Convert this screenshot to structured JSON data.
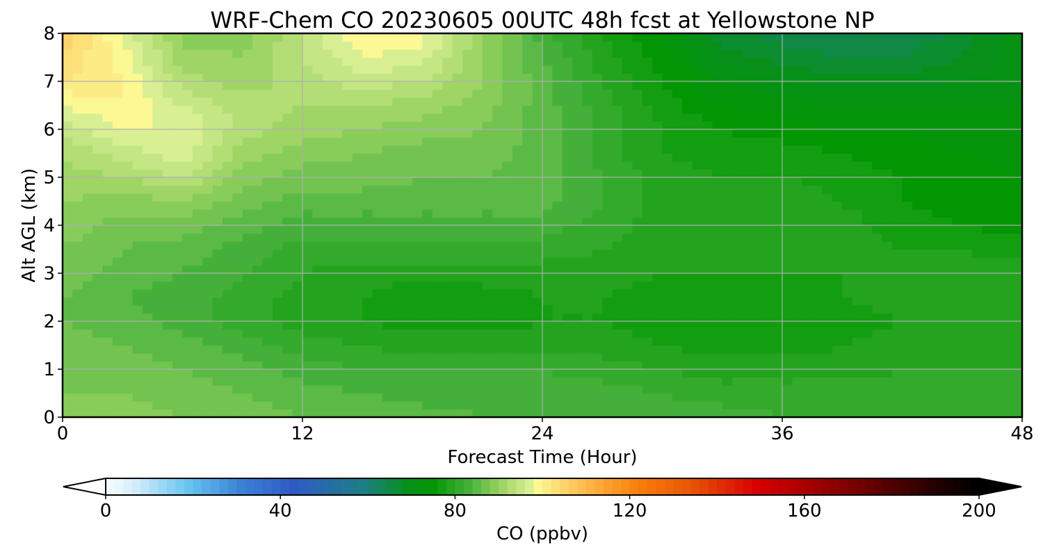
{
  "chart_data": {
    "type": "heatmap",
    "title": "WRF-Chem CO  20230605 00UTC 48h fcst at Yellowstone NP",
    "xlabel": "Forecast Time (Hour)",
    "ylabel": "Alt AGL (km)",
    "xlim": [
      0,
      48
    ],
    "ylim": [
      0,
      8
    ],
    "xticks": [
      0,
      12,
      24,
      36,
      48
    ],
    "yticks": [
      0,
      1,
      2,
      3,
      4,
      5,
      6,
      7,
      8
    ],
    "grid": true,
    "x": [
      0,
      3,
      6,
      9,
      12,
      15,
      18,
      21,
      24,
      27,
      30,
      33,
      36,
      39,
      42,
      45,
      48
    ],
    "y": [
      0,
      0.5,
      1,
      1.5,
      2,
      2.5,
      3,
      3.5,
      4,
      4.5,
      5,
      5.5,
      6,
      6.5,
      7,
      7.5,
      8
    ],
    "z": [
      [
        90,
        90,
        89,
        88,
        87,
        87,
        86,
        85,
        85,
        85,
        84,
        84,
        83,
        83,
        83,
        83,
        82
      ],
      [
        89,
        89,
        88,
        87,
        86,
        85,
        84,
        84,
        84,
        84,
        83,
        82,
        82,
        82,
        82,
        82,
        82
      ],
      [
        88,
        88,
        87,
        86,
        84,
        83,
        83,
        83,
        83,
        82,
        81,
        80,
        80,
        80,
        81,
        81,
        81
      ],
      [
        88,
        87,
        86,
        84,
        82,
        81,
        80,
        80,
        80,
        80,
        79,
        78,
        78,
        79,
        80,
        80,
        81
      ],
      [
        87,
        86,
        84,
        82,
        80,
        79,
        78,
        78,
        79,
        79,
        78,
        77,
        77,
        78,
        79,
        80,
        81
      ],
      [
        87,
        85,
        84,
        82,
        80,
        79,
        77,
        78,
        79,
        79,
        78,
        78,
        78,
        79,
        80,
        80,
        81
      ],
      [
        88,
        86,
        85,
        83,
        81,
        80,
        80,
        80,
        80,
        80,
        79,
        79,
        79,
        79,
        80,
        80,
        80
      ],
      [
        89,
        87,
        86,
        84,
        82,
        82,
        82,
        82,
        82,
        81,
        80,
        80,
        80,
        80,
        79,
        79,
        78
      ],
      [
        90,
        88,
        88,
        86,
        84,
        84,
        84,
        84,
        84,
        82,
        80,
        80,
        81,
        80,
        78,
        77,
        76
      ],
      [
        91,
        90,
        91,
        88,
        86,
        86,
        86,
        86,
        86,
        83,
        80,
        80,
        81,
        79,
        77,
        76,
        75
      ],
      [
        92,
        93,
        95,
        90,
        88,
        88,
        87,
        87,
        86,
        83,
        80,
        79,
        79,
        78,
        77,
        76,
        75
      ],
      [
        93,
        96,
        98,
        92,
        90,
        89,
        88,
        88,
        86,
        82,
        79,
        78,
        78,
        77,
        76,
        75,
        74
      ],
      [
        96,
        99,
        99,
        94,
        92,
        91,
        90,
        89,
        86,
        82,
        79,
        77,
        76,
        75,
        75,
        74,
        74
      ],
      [
        99,
        101,
        97,
        94,
        93,
        93,
        92,
        90,
        86,
        82,
        78,
        75,
        74,
        73,
        73,
        73,
        73
      ],
      [
        103,
        101,
        94,
        92,
        94,
        96,
        95,
        91,
        86,
        81,
        77,
        73,
        71,
        70,
        70,
        71,
        72
      ],
      [
        105,
        100,
        92,
        91,
        95,
        99,
        98,
        91,
        85,
        80,
        76,
        70,
        68,
        67,
        67,
        69,
        72
      ],
      [
        106,
        99,
        90,
        90,
        95,
        101,
        100,
        91,
        84,
        79,
        75,
        68,
        66,
        65,
        65,
        68,
        72
      ]
    ],
    "colorbar": {
      "label": "CO  (ppbv)",
      "min": 0,
      "max": 200,
      "ticks": [
        0,
        40,
        80,
        120,
        160,
        200
      ],
      "extend": "both",
      "stops": [
        {
          "v": 0,
          "c": "#ffffff"
        },
        {
          "v": 8,
          "c": "#d0ecfb"
        },
        {
          "v": 20,
          "c": "#66c3f0"
        },
        {
          "v": 32,
          "c": "#3b82d6"
        },
        {
          "v": 44,
          "c": "#2f5ac4"
        },
        {
          "v": 60,
          "c": "#1d7f86"
        },
        {
          "v": 70,
          "c": "#06901a"
        },
        {
          "v": 76,
          "c": "#029602"
        },
        {
          "v": 84,
          "c": "#44b03a"
        },
        {
          "v": 92,
          "c": "#9fd565"
        },
        {
          "v": 98,
          "c": "#d8ef94"
        },
        {
          "v": 100,
          "c": "#fcf893"
        },
        {
          "v": 106,
          "c": "#fdd46b"
        },
        {
          "v": 116,
          "c": "#fd9f2c"
        },
        {
          "v": 124,
          "c": "#f87a08"
        },
        {
          "v": 134,
          "c": "#e85a05"
        },
        {
          "v": 150,
          "c": "#d80000"
        },
        {
          "v": 168,
          "c": "#8c0000"
        },
        {
          "v": 186,
          "c": "#3a0000"
        },
        {
          "v": 200,
          "c": "#000000"
        }
      ]
    }
  }
}
